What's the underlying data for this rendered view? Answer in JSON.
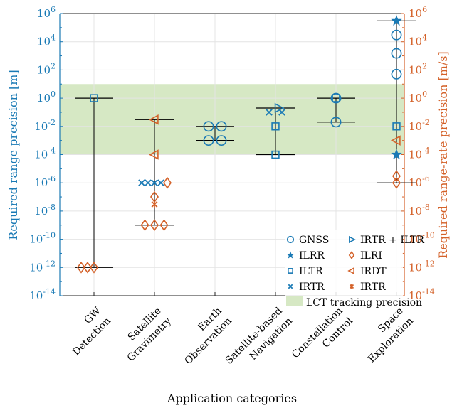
{
  "chart_data": {
    "type": "scatter",
    "title": "",
    "xlabel": "Application categories",
    "ylabel_left": "Required range precision [m]",
    "ylabel_right": "Required range-rate precision [m/s]",
    "y_scale": "log10",
    "ylim": [
      1e-14,
      1000000.0
    ],
    "y_ticks": [
      {
        "exp": -14,
        "label": "10^-14"
      },
      {
        "exp": -12,
        "label": "10^-12"
      },
      {
        "exp": -10,
        "label": "10^-10"
      },
      {
        "exp": -8,
        "label": "10^-8"
      },
      {
        "exp": -6,
        "label": "10^-6"
      },
      {
        "exp": -4,
        "label": "10^-4"
      },
      {
        "exp": -2,
        "label": "10^-2"
      },
      {
        "exp": 0,
        "label": "10^0"
      },
      {
        "exp": 2,
        "label": "10^2"
      },
      {
        "exp": 4,
        "label": "10^4"
      },
      {
        "exp": 6,
        "label": "10^6"
      }
    ],
    "grid": true,
    "colors": {
      "left_axis": "#1a7ab5",
      "right_axis": "#d4622a",
      "band": "#d6e8c4"
    },
    "categories": [
      [
        "GW",
        "Detection"
      ],
      [
        "Satellite",
        "Gravimetry"
      ],
      [
        "Earth",
        "Observation"
      ],
      [
        "Satellite-based",
        "Navigation"
      ],
      [
        "Constellation",
        "Control"
      ],
      [
        "Space",
        "Exploration"
      ]
    ],
    "lct_band": {
      "label": "LCT tracking precision",
      "y_low": 0.0001,
      "y_high": 10
    },
    "range_lines": [
      {
        "category": 0,
        "y_low": 1e-12,
        "y_high": 1
      },
      {
        "category": 1,
        "y_low": 1e-09,
        "y_high": 0.03
      },
      {
        "category": 2,
        "y_low": 0.001,
        "y_high": 0.01
      },
      {
        "category": 3,
        "y_low": 0.0001,
        "y_high": 0.2
      },
      {
        "category": 4,
        "y_low": 0.02,
        "y_high": 1
      },
      {
        "category": 5,
        "y_low": 1e-06,
        "y_high": 300000
      }
    ],
    "series": [
      {
        "name": "GNSS",
        "marker": "circle",
        "color": "#1a7ab5",
        "points": [
          [
            2,
            0.01,
            -1
          ],
          [
            2,
            0.01,
            1
          ],
          [
            2,
            0.001,
            -1
          ],
          [
            2,
            0.001,
            1
          ],
          [
            4,
            1,
            0
          ],
          [
            4,
            0.02,
            0
          ],
          [
            5,
            30000,
            0
          ],
          [
            5,
            1500,
            0
          ],
          [
            5,
            50,
            0
          ]
        ]
      },
      {
        "name": "ILRR",
        "marker": "star",
        "color": "#1a7ab5",
        "points": [
          [
            5,
            300000,
            0
          ],
          [
            5,
            0.0001,
            0
          ]
        ]
      },
      {
        "name": "ILTR",
        "marker": "square",
        "color": "#1a7ab5",
        "points": [
          [
            0,
            1,
            0
          ],
          [
            3,
            0.01,
            0
          ],
          [
            3,
            0.0001,
            0
          ],
          [
            4,
            1,
            0
          ],
          [
            5,
            0.01,
            0
          ]
        ]
      },
      {
        "name": "IRTR",
        "marker": "x",
        "color": "#1a7ab5",
        "points": [
          [
            1,
            1e-06,
            -2
          ],
          [
            1,
            1e-06,
            -1
          ],
          [
            1,
            1e-06,
            0
          ],
          [
            1,
            1e-06,
            1
          ],
          [
            3,
            0.1,
            -1
          ],
          [
            3,
            0.1,
            1
          ]
        ]
      },
      {
        "name": "IRTR + ILTR",
        "marker": "triangle-right",
        "color": "#1a7ab5",
        "points": [
          [
            3,
            0.2,
            0.5
          ]
        ]
      },
      {
        "name": "ILRI",
        "marker": "diamond",
        "color": "#d4622a",
        "points": [
          [
            0,
            1e-12,
            -2
          ],
          [
            0,
            1e-12,
            -1
          ],
          [
            0,
            1e-12,
            0
          ],
          [
            1,
            1e-06,
            2
          ],
          [
            1,
            1e-07,
            0
          ],
          [
            1,
            1e-09,
            -1.5
          ],
          [
            1,
            1e-09,
            0
          ],
          [
            1,
            1e-09,
            1.5
          ],
          [
            5,
            3e-06,
            0
          ],
          [
            5,
            1e-06,
            0
          ]
        ]
      },
      {
        "name": "IRDT",
        "marker": "triangle-left",
        "color": "#d4622a",
        "points": [
          [
            1,
            0.03,
            0
          ],
          [
            1,
            0.0001,
            0
          ],
          [
            5,
            0.001,
            0
          ]
        ]
      },
      {
        "name": "IRTR",
        "marker": "asterisk",
        "color": "#d4622a",
        "points": [
          [
            1,
            3e-08,
            0
          ]
        ]
      }
    ],
    "legend": {
      "position": "bottom-right",
      "columns": 2
    }
  }
}
